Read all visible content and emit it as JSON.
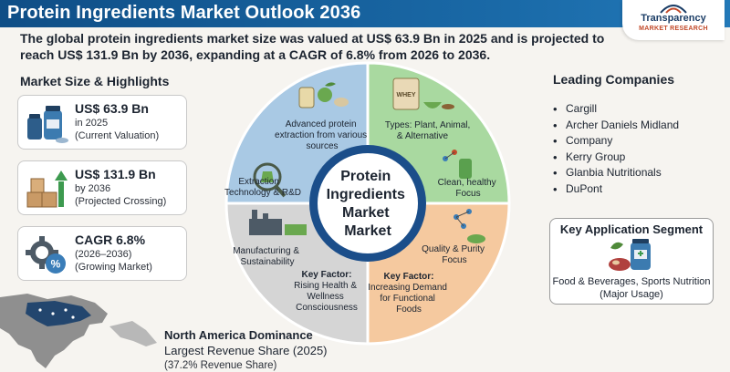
{
  "header": {
    "title": "Protein Ingredients Market Outlook 2036",
    "logo_name": "Transparency",
    "logo_sub": "MARKET RESEARCH"
  },
  "summary": {
    "line1": "The global protein ingredients market size was valued at US$ 63.9 Bn in 2025 and is projected to",
    "line2": "reach US$ 131.9 Bn by 2036, expanding at a CAGR of 6.8% from 2026 to 2036."
  },
  "highlights": {
    "title": "Market Size & Highlights",
    "cards": [
      {
        "value": "US$ 63.9 Bn",
        "line1": "in 2025",
        "line2": "(Current Valuation)",
        "icon": "protein-jars-icon"
      },
      {
        "value": "US$ 131.9 Bn",
        "line1": "by 2036",
        "line2": "(Projected Crossing)",
        "icon": "growth-boxes-icon"
      },
      {
        "value": "CAGR 6.8%",
        "line1": "(2026–2036)",
        "line2": "(Growing Market)",
        "icon": "gear-percent-icon"
      }
    ]
  },
  "wheel": {
    "center": [
      "Protein",
      "Ingredients",
      "Market",
      "Market"
    ],
    "q1": [
      "Advanced protein",
      "extraction from various",
      "sources"
    ],
    "q1b": [
      "Extraction",
      "Technology & R&D"
    ],
    "q2": [
      "Types: Plant, Animal,",
      "& Alternative"
    ],
    "q2b": [
      "Clean, healthy",
      "Focus"
    ],
    "q3": [
      "Manufacturing &",
      "Sustainability"
    ],
    "q3key": "Key Factor:",
    "q3b": [
      "Rising Health &",
      "Wellness",
      "Consciousness"
    ],
    "q4": [
      "Quality & Purity",
      "Focus"
    ],
    "q4key": "Key Factor:",
    "q4b": [
      "Increasing Demand",
      "for Functional",
      "Foods"
    ],
    "whey_label": "WHEY",
    "colors": {
      "q1": "#a9c9e4",
      "q2": "#a9d9a0",
      "q3": "#d5d5d5",
      "q4": "#f5c99f",
      "ring": "#1b4e8a"
    }
  },
  "leading": {
    "title": "Leading Companies",
    "companies": [
      "Cargill",
      "Archer Daniels Midland",
      "Company",
      "Kerry Group",
      "Glanbia Nutritionals",
      "DuPont"
    ]
  },
  "application": {
    "title": "Key Application Segment",
    "line1": "Food & Beverages, Sports Nutrition",
    "line2": "(Major Usage)",
    "icon": "food-nutrition-icon"
  },
  "region": {
    "title": "North America Dominance",
    "subtitle": "Largest Revenue Share (2025)",
    "share": "(37.2% Revenue Share)"
  }
}
